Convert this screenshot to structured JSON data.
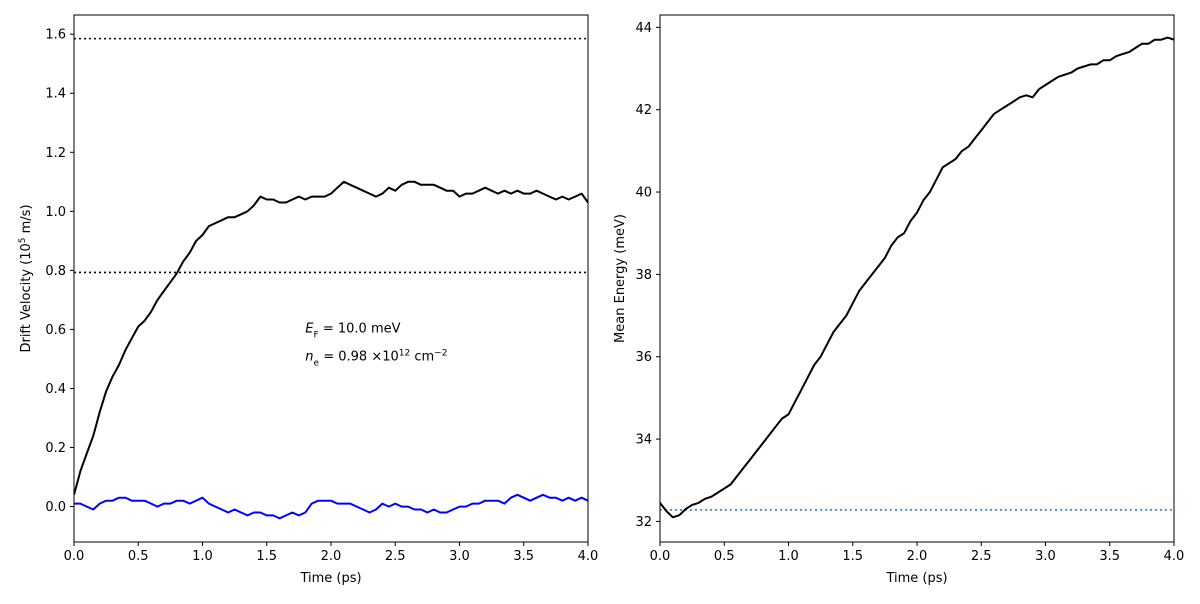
{
  "chart_data": [
    {
      "type": "line",
      "xlabel": "Time (ps)",
      "ylabel": {
        "prefix": "Drift Velocity (10",
        "exponent": "5",
        "suffix": " m/s)"
      },
      "xlim": [
        0.0,
        4.0
      ],
      "ylim": [
        -0.12,
        1.665
      ],
      "xticks": [
        "0.0",
        "0.5",
        "1.0",
        "1.5",
        "2.0",
        "2.5",
        "3.0",
        "3.5",
        "4.0"
      ],
      "yticks": [
        "0.0",
        "0.2",
        "0.4",
        "0.6",
        "0.8",
        "1.0",
        "1.2",
        "1.4",
        "1.6"
      ],
      "grid": false,
      "series": [
        {
          "color": "#000000",
          "style": "solid",
          "x": [
            0.0,
            0.05,
            0.1,
            0.15,
            0.2,
            0.25,
            0.3,
            0.35,
            0.4,
            0.45,
            0.5,
            0.55,
            0.6,
            0.65,
            0.7,
            0.75,
            0.8,
            0.85,
            0.9,
            0.95,
            1.0,
            1.05,
            1.1,
            1.15,
            1.2,
            1.25,
            1.3,
            1.35,
            1.4,
            1.45,
            1.5,
            1.55,
            1.6,
            1.65,
            1.7,
            1.75,
            1.8,
            1.85,
            1.9,
            1.95,
            2.0,
            2.05,
            2.1,
            2.15,
            2.2,
            2.25,
            2.3,
            2.35,
            2.4,
            2.45,
            2.5,
            2.55,
            2.6,
            2.65,
            2.7,
            2.75,
            2.8,
            2.85,
            2.9,
            2.95,
            3.0,
            3.05,
            3.1,
            3.15,
            3.2,
            3.25,
            3.3,
            3.35,
            3.4,
            3.45,
            3.5,
            3.55,
            3.6,
            3.65,
            3.7,
            3.75,
            3.8,
            3.85,
            3.9,
            3.95,
            4.0
          ],
          "y": [
            0.04,
            0.12,
            0.18,
            0.24,
            0.32,
            0.39,
            0.44,
            0.48,
            0.53,
            0.57,
            0.61,
            0.63,
            0.66,
            0.7,
            0.73,
            0.76,
            0.79,
            0.83,
            0.86,
            0.9,
            0.92,
            0.95,
            0.96,
            0.97,
            0.98,
            0.98,
            0.99,
            1.0,
            1.02,
            1.05,
            1.04,
            1.04,
            1.03,
            1.03,
            1.04,
            1.05,
            1.04,
            1.05,
            1.05,
            1.05,
            1.06,
            1.08,
            1.1,
            1.09,
            1.08,
            1.07,
            1.06,
            1.05,
            1.06,
            1.08,
            1.07,
            1.09,
            1.1,
            1.1,
            1.09,
            1.09,
            1.09,
            1.08,
            1.07,
            1.07,
            1.05,
            1.06,
            1.06,
            1.07,
            1.08,
            1.07,
            1.06,
            1.07,
            1.06,
            1.07,
            1.06,
            1.06,
            1.07,
            1.06,
            1.05,
            1.04,
            1.05,
            1.04,
            1.05,
            1.06,
            1.03
          ]
        },
        {
          "color": "#0000ff",
          "style": "solid",
          "x": [
            0.0,
            0.05,
            0.1,
            0.15,
            0.2,
            0.25,
            0.3,
            0.35,
            0.4,
            0.45,
            0.5,
            0.55,
            0.6,
            0.65,
            0.7,
            0.75,
            0.8,
            0.85,
            0.9,
            0.95,
            1.0,
            1.05,
            1.1,
            1.15,
            1.2,
            1.25,
            1.3,
            1.35,
            1.4,
            1.45,
            1.5,
            1.55,
            1.6,
            1.65,
            1.7,
            1.75,
            1.8,
            1.85,
            1.9,
            1.95,
            2.0,
            2.05,
            2.1,
            2.15,
            2.2,
            2.25,
            2.3,
            2.35,
            2.4,
            2.45,
            2.5,
            2.55,
            2.6,
            2.65,
            2.7,
            2.75,
            2.8,
            2.85,
            2.9,
            2.95,
            3.0,
            3.05,
            3.1,
            3.15,
            3.2,
            3.25,
            3.3,
            3.35,
            3.4,
            3.45,
            3.5,
            3.55,
            3.6,
            3.65,
            3.7,
            3.75,
            3.8,
            3.85,
            3.9,
            3.95,
            4.0
          ],
          "y": [
            0.01,
            0.01,
            0.0,
            -0.01,
            0.01,
            0.02,
            0.02,
            0.03,
            0.03,
            0.02,
            0.02,
            0.02,
            0.01,
            0.0,
            0.01,
            0.01,
            0.02,
            0.02,
            0.01,
            0.02,
            0.03,
            0.01,
            0.0,
            -0.01,
            -0.02,
            -0.01,
            -0.02,
            -0.03,
            -0.02,
            -0.02,
            -0.03,
            -0.03,
            -0.04,
            -0.03,
            -0.02,
            -0.03,
            -0.02,
            0.01,
            0.02,
            0.02,
            0.02,
            0.01,
            0.01,
            0.01,
            0.0,
            -0.01,
            -0.02,
            -0.01,
            0.01,
            0.0,
            0.01,
            0.0,
            0.0,
            -0.01,
            -0.01,
            -0.02,
            -0.01,
            -0.02,
            -0.02,
            -0.01,
            0.0,
            0.0,
            0.01,
            0.01,
            0.02,
            0.02,
            0.02,
            0.01,
            0.03,
            0.04,
            0.03,
            0.02,
            0.03,
            0.04,
            0.03,
            0.03,
            0.02,
            0.03,
            0.02,
            0.03,
            0.02
          ]
        }
      ],
      "reference_lines": [
        {
          "y": 1.585,
          "color": "#000000",
          "style": "dotted"
        },
        {
          "y": 0.793,
          "color": "#000000",
          "style": "dotted"
        }
      ],
      "annotations": [
        {
          "id": "ef",
          "x": 1.8,
          "y": 0.59,
          "symbol": "E",
          "subscript": "F",
          "text": " = 10.0 meV"
        },
        {
          "id": "ne",
          "x": 1.8,
          "y": 0.495,
          "symbol": "n",
          "subscript": "e",
          "text": " = 0.98 ×10",
          "exponent1": "12",
          "unit": " cm",
          "exponent2": "−2"
        }
      ]
    },
    {
      "type": "line",
      "xlabel": "Time (ps)",
      "ylabel": "Mean Energy (meV)",
      "xlim": [
        0.0,
        4.0
      ],
      "ylim": [
        31.5,
        44.3
      ],
      "xticks": [
        "0.0",
        "0.5",
        "1.0",
        "1.5",
        "2.0",
        "2.5",
        "3.0",
        "3.5",
        "4.0"
      ],
      "yticks": [
        "32",
        "34",
        "36",
        "38",
        "40",
        "42",
        "44"
      ],
      "grid": false,
      "series": [
        {
          "color": "#000000",
          "style": "solid",
          "x": [
            0.0,
            0.05,
            0.1,
            0.15,
            0.2,
            0.25,
            0.3,
            0.35,
            0.4,
            0.45,
            0.5,
            0.55,
            0.6,
            0.65,
            0.7,
            0.75,
            0.8,
            0.85,
            0.9,
            0.95,
            1.0,
            1.05,
            1.1,
            1.15,
            1.2,
            1.25,
            1.3,
            1.35,
            1.4,
            1.45,
            1.5,
            1.55,
            1.6,
            1.65,
            1.7,
            1.75,
            1.8,
            1.85,
            1.9,
            1.95,
            2.0,
            2.05,
            2.1,
            2.15,
            2.2,
            2.25,
            2.3,
            2.35,
            2.4,
            2.45,
            2.5,
            2.55,
            2.6,
            2.65,
            2.7,
            2.75,
            2.8,
            2.85,
            2.9,
            2.95,
            3.0,
            3.05,
            3.1,
            3.15,
            3.2,
            3.25,
            3.3,
            3.35,
            3.4,
            3.45,
            3.5,
            3.55,
            3.6,
            3.65,
            3.7,
            3.75,
            3.8,
            3.85,
            3.9,
            3.95,
            4.0
          ],
          "y": [
            32.45,
            32.25,
            32.1,
            32.15,
            32.3,
            32.4,
            32.45,
            32.55,
            32.6,
            32.7,
            32.8,
            32.9,
            33.1,
            33.3,
            33.5,
            33.7,
            33.9,
            34.1,
            34.3,
            34.5,
            34.6,
            34.9,
            35.2,
            35.5,
            35.8,
            36.0,
            36.3,
            36.6,
            36.8,
            37.0,
            37.3,
            37.6,
            37.8,
            38.0,
            38.2,
            38.4,
            38.7,
            38.9,
            39.0,
            39.3,
            39.5,
            39.8,
            40.0,
            40.3,
            40.6,
            40.7,
            40.8,
            41.0,
            41.1,
            41.3,
            41.5,
            41.7,
            41.9,
            42.0,
            42.1,
            42.2,
            42.3,
            42.35,
            42.3,
            42.5,
            42.6,
            42.7,
            42.8,
            42.85,
            42.9,
            43.0,
            43.05,
            43.1,
            43.1,
            43.2,
            43.2,
            43.3,
            43.35,
            43.4,
            43.5,
            43.6,
            43.6,
            43.7,
            43.7,
            43.75,
            43.7
          ]
        }
      ],
      "reference_lines": [
        {
          "y": 32.28,
          "color": "#1f77b4",
          "style": "dotted"
        }
      ]
    }
  ]
}
